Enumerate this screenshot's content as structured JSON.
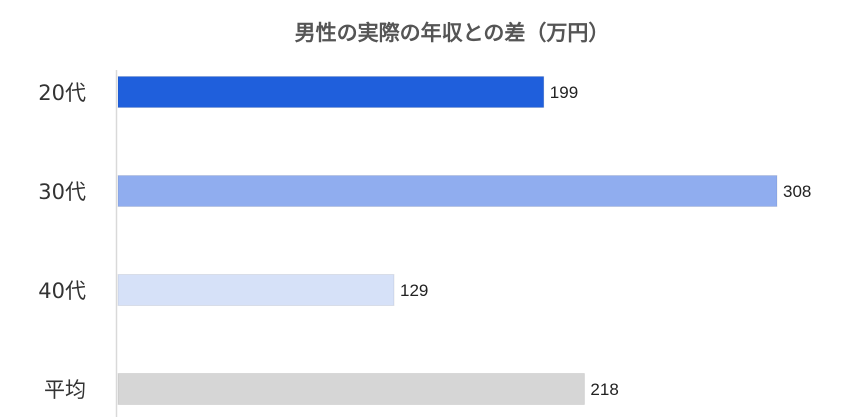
{
  "chart_data": {
    "type": "bar",
    "orientation": "horizontal",
    "title": "男性の実際の年収との差（万円）",
    "categories": [
      "20代",
      "30代",
      "40代",
      "平均"
    ],
    "values": [
      199,
      308,
      129,
      218
    ],
    "value_labels": [
      "199",
      "308",
      "129",
      "218"
    ],
    "colors": [
      "#1f5fdc",
      "#90adef",
      "#d6e1f8",
      "#d6d6d6"
    ],
    "xlim": [
      0,
      308
    ],
    "grid": false,
    "legend": "none"
  }
}
